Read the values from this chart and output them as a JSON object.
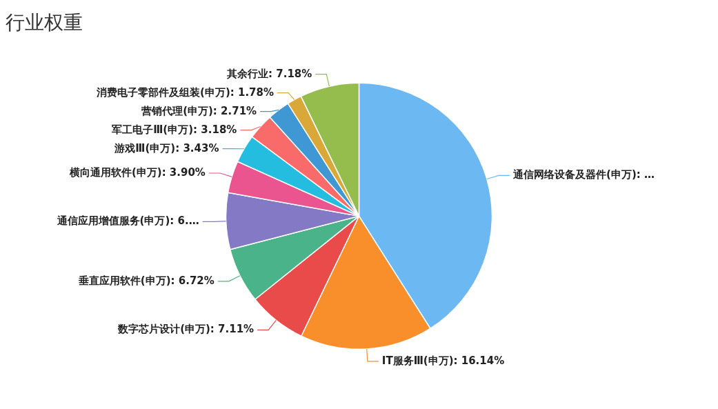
{
  "chart_data": {
    "type": "pie",
    "title": "行业权重",
    "categories": [
      "通信网络设备及器件(申万)",
      "IT服务Ⅲ(申万)",
      "数字芯片设计(申万)",
      "垂直应用软件(申万)",
      "通信应用增值服务(申万)",
      "横向通用软件(申万)",
      "游戏Ⅲ(申万)",
      "军工电子Ⅲ(申万)",
      "营销代理(申万)",
      "消费电子零部件及组装(申万)",
      "其余行业"
    ],
    "values": [
      41.0,
      16.14,
      7.11,
      6.72,
      6.85,
      3.9,
      3.43,
      3.18,
      2.71,
      1.78,
      7.18
    ],
    "value_labels": [
      "…",
      "16.14%",
      "7.11%",
      "6.72%",
      "6.…",
      "3.90%",
      "3.43%",
      "3.18%",
      "2.71%",
      "1.78%",
      "7.18%"
    ],
    "colors": [
      "#6cb8f2",
      "#f98f2b",
      "#e94b4b",
      "#4bb38a",
      "#8479c4",
      "#ea5590",
      "#24bde0",
      "#f96b6b",
      "#3f97d3",
      "#d9a838",
      "#94bd4e"
    ]
  }
}
